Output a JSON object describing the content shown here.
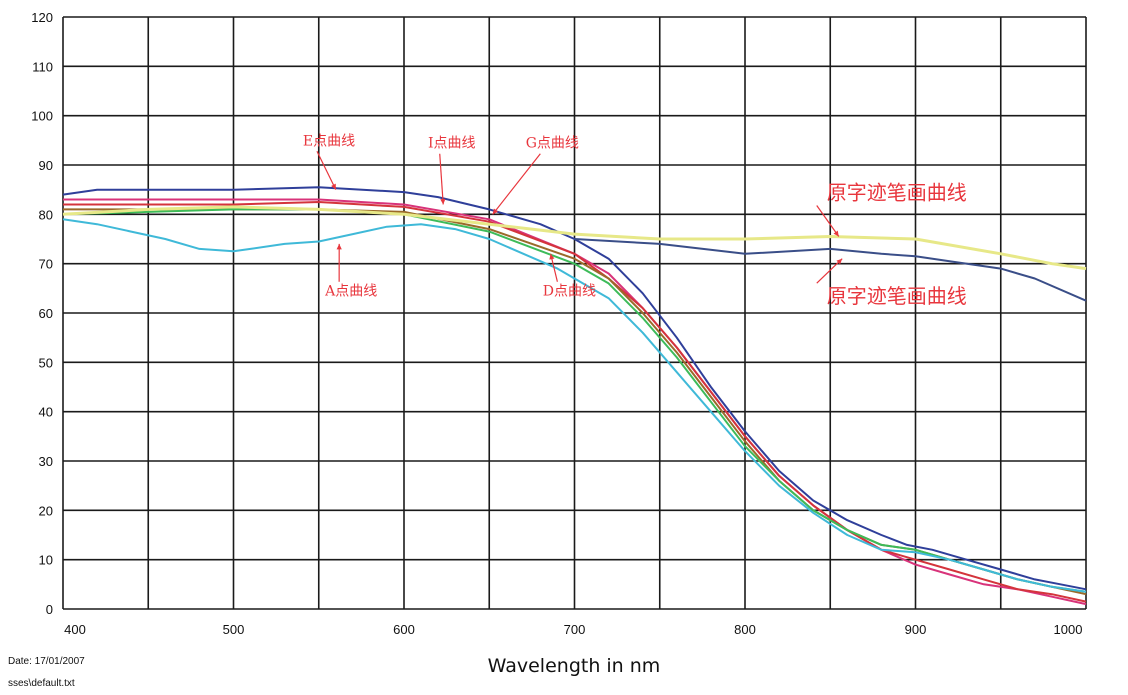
{
  "chart_data": {
    "type": "line",
    "title": "",
    "xlabel": "Wavelength in nm",
    "ylabel": "",
    "xlim": [
      400,
      1000
    ],
    "ylim": [
      0,
      120
    ],
    "x_ticks": [
      "400",
      "500",
      "600",
      "700",
      "800",
      "900",
      "1000"
    ],
    "y_ticks": [
      "0",
      "10",
      "20",
      "30",
      "40",
      "50",
      "60",
      "70",
      "80",
      "90",
      "100",
      "110",
      "120"
    ],
    "grid": true,
    "legend": "none",
    "series": [
      {
        "color": "#2f3f9a",
        "points": [
          [
            400,
            84
          ],
          [
            420,
            85
          ],
          [
            450,
            85
          ],
          [
            500,
            85
          ],
          [
            550,
            85.5
          ],
          [
            600,
            84.5
          ],
          [
            620,
            83.5
          ],
          [
            650,
            81
          ],
          [
            680,
            78
          ],
          [
            700,
            75
          ],
          [
            720,
            71
          ],
          [
            740,
            64
          ],
          [
            760,
            55
          ],
          [
            780,
            45
          ],
          [
            800,
            36
          ],
          [
            820,
            28
          ],
          [
            840,
            22
          ],
          [
            860,
            18
          ],
          [
            880,
            15
          ],
          [
            895,
            13
          ],
          [
            910,
            12
          ],
          [
            930,
            10
          ],
          [
            950,
            8
          ],
          [
            970,
            6
          ],
          [
            985,
            5
          ],
          [
            1000,
            4
          ]
        ]
      },
      {
        "color": "#d8337a",
        "points": [
          [
            400,
            83
          ],
          [
            450,
            83
          ],
          [
            500,
            83
          ],
          [
            550,
            83
          ],
          [
            600,
            82
          ],
          [
            650,
            79
          ],
          [
            700,
            72
          ],
          [
            720,
            68
          ],
          [
            740,
            61
          ],
          [
            760,
            53
          ],
          [
            780,
            44
          ],
          [
            800,
            35
          ],
          [
            820,
            27
          ],
          [
            840,
            21
          ],
          [
            860,
            16
          ],
          [
            880,
            12
          ],
          [
            900,
            9
          ],
          [
            920,
            7
          ],
          [
            940,
            5
          ],
          [
            960,
            4
          ],
          [
            980,
            2.5
          ],
          [
            1000,
            1
          ]
        ]
      },
      {
        "color": "#d4343c",
        "points": [
          [
            400,
            82
          ],
          [
            450,
            82
          ],
          [
            500,
            82
          ],
          [
            550,
            82.5
          ],
          [
            600,
            81.5
          ],
          [
            650,
            78.5
          ],
          [
            700,
            72
          ],
          [
            720,
            67
          ],
          [
            740,
            61
          ],
          [
            760,
            53
          ],
          [
            780,
            44
          ],
          [
            800,
            35
          ],
          [
            820,
            27
          ],
          [
            840,
            21
          ],
          [
            860,
            16
          ],
          [
            880,
            12
          ],
          [
            900,
            10
          ],
          [
            920,
            8
          ],
          [
            940,
            6
          ],
          [
            960,
            4
          ],
          [
            980,
            3
          ],
          [
            1000,
            1.5
          ]
        ]
      },
      {
        "color": "#9b6a2a",
        "points": [
          [
            400,
            81
          ],
          [
            450,
            81
          ],
          [
            500,
            81
          ],
          [
            550,
            81
          ],
          [
            600,
            80.5
          ],
          [
            650,
            77
          ],
          [
            700,
            71
          ],
          [
            720,
            67
          ],
          [
            740,
            60
          ],
          [
            760,
            52
          ],
          [
            780,
            43
          ],
          [
            800,
            34
          ],
          [
            820,
            26
          ],
          [
            840,
            20
          ],
          [
            860,
            16
          ],
          [
            880,
            13
          ],
          [
            900,
            12
          ],
          [
            920,
            10
          ],
          [
            940,
            8
          ],
          [
            960,
            6
          ],
          [
            980,
            4.5
          ],
          [
            1000,
            3
          ]
        ]
      },
      {
        "color": "#3dbb59",
        "points": [
          [
            400,
            80
          ],
          [
            450,
            80.5
          ],
          [
            500,
            81
          ],
          [
            550,
            81
          ],
          [
            600,
            80
          ],
          [
            650,
            76.5
          ],
          [
            700,
            70
          ],
          [
            720,
            66
          ],
          [
            740,
            59
          ],
          [
            760,
            51
          ],
          [
            780,
            42
          ],
          [
            800,
            33
          ],
          [
            820,
            26
          ],
          [
            840,
            20
          ],
          [
            860,
            16
          ],
          [
            880,
            13
          ],
          [
            900,
            12
          ],
          [
            920,
            10
          ],
          [
            940,
            8
          ],
          [
            960,
            6
          ],
          [
            980,
            4.5
          ],
          [
            1000,
            3.5
          ]
        ]
      },
      {
        "color": "#3fb9d8",
        "points": [
          [
            400,
            79
          ],
          [
            420,
            78
          ],
          [
            440,
            76.5
          ],
          [
            460,
            75
          ],
          [
            480,
            73
          ],
          [
            500,
            72.5
          ],
          [
            510,
            73
          ],
          [
            530,
            74
          ],
          [
            550,
            74.5
          ],
          [
            570,
            76
          ],
          [
            590,
            77.5
          ],
          [
            610,
            78
          ],
          [
            630,
            77
          ],
          [
            650,
            75
          ],
          [
            670,
            72
          ],
          [
            690,
            69
          ],
          [
            700,
            67
          ],
          [
            720,
            63
          ],
          [
            740,
            56
          ],
          [
            760,
            48
          ],
          [
            780,
            40
          ],
          [
            800,
            32
          ],
          [
            820,
            25
          ],
          [
            840,
            19.5
          ],
          [
            860,
            15
          ],
          [
            880,
            12
          ],
          [
            900,
            11.5
          ],
          [
            920,
            10
          ],
          [
            940,
            8
          ],
          [
            960,
            6
          ],
          [
            980,
            4.5
          ],
          [
            1000,
            3.5
          ]
        ]
      },
      {
        "color": "#e7e888",
        "points": [
          [
            400,
            80
          ],
          [
            450,
            81
          ],
          [
            500,
            81.5
          ],
          [
            550,
            81
          ],
          [
            600,
            80
          ],
          [
            650,
            78
          ],
          [
            700,
            76
          ],
          [
            750,
            75
          ],
          [
            800,
            75
          ],
          [
            850,
            75.5
          ],
          [
            900,
            75
          ],
          [
            950,
            72
          ],
          [
            980,
            70
          ],
          [
            1000,
            69
          ]
        ]
      },
      {
        "color": "#3a4e88",
        "points": [
          [
            700,
            75
          ],
          [
            750,
            74
          ],
          [
            800,
            72
          ],
          [
            850,
            73
          ],
          [
            880,
            72
          ],
          [
            900,
            71.5
          ],
          [
            920,
            70.5
          ],
          [
            950,
            69
          ],
          [
            970,
            67
          ],
          [
            1000,
            62.5
          ]
        ]
      }
    ],
    "annotations": [
      {
        "text": "E点曲线",
        "x": 556,
        "y": 94,
        "arrow_to": [
          560,
          85
        ]
      },
      {
        "text": "I点曲线",
        "x": 628,
        "y": 93.5,
        "arrow_to": [
          623,
          82
        ]
      },
      {
        "text": "G点曲线",
        "x": 687,
        "y": 93.5,
        "arrow_to": [
          652,
          80
        ]
      },
      {
        "text": "A点曲线",
        "x": 569,
        "y": 63.5,
        "arrow_to": [
          562,
          74
        ]
      },
      {
        "text": "D点曲线",
        "x": 697,
        "y": 63.5,
        "arrow_to": [
          686,
          72
        ]
      },
      {
        "text": "原字迹笔画曲线",
        "x": 889,
        "y": 83,
        "arrow_to": [
          855,
          75.5
        ]
      },
      {
        "text": "原字迹笔画曲线",
        "x": 889,
        "y": 62,
        "arrow_to": [
          857,
          71
        ]
      }
    ]
  },
  "footer": {
    "date": "Date: 17/01/2007",
    "file": "sses\\default.txt"
  }
}
